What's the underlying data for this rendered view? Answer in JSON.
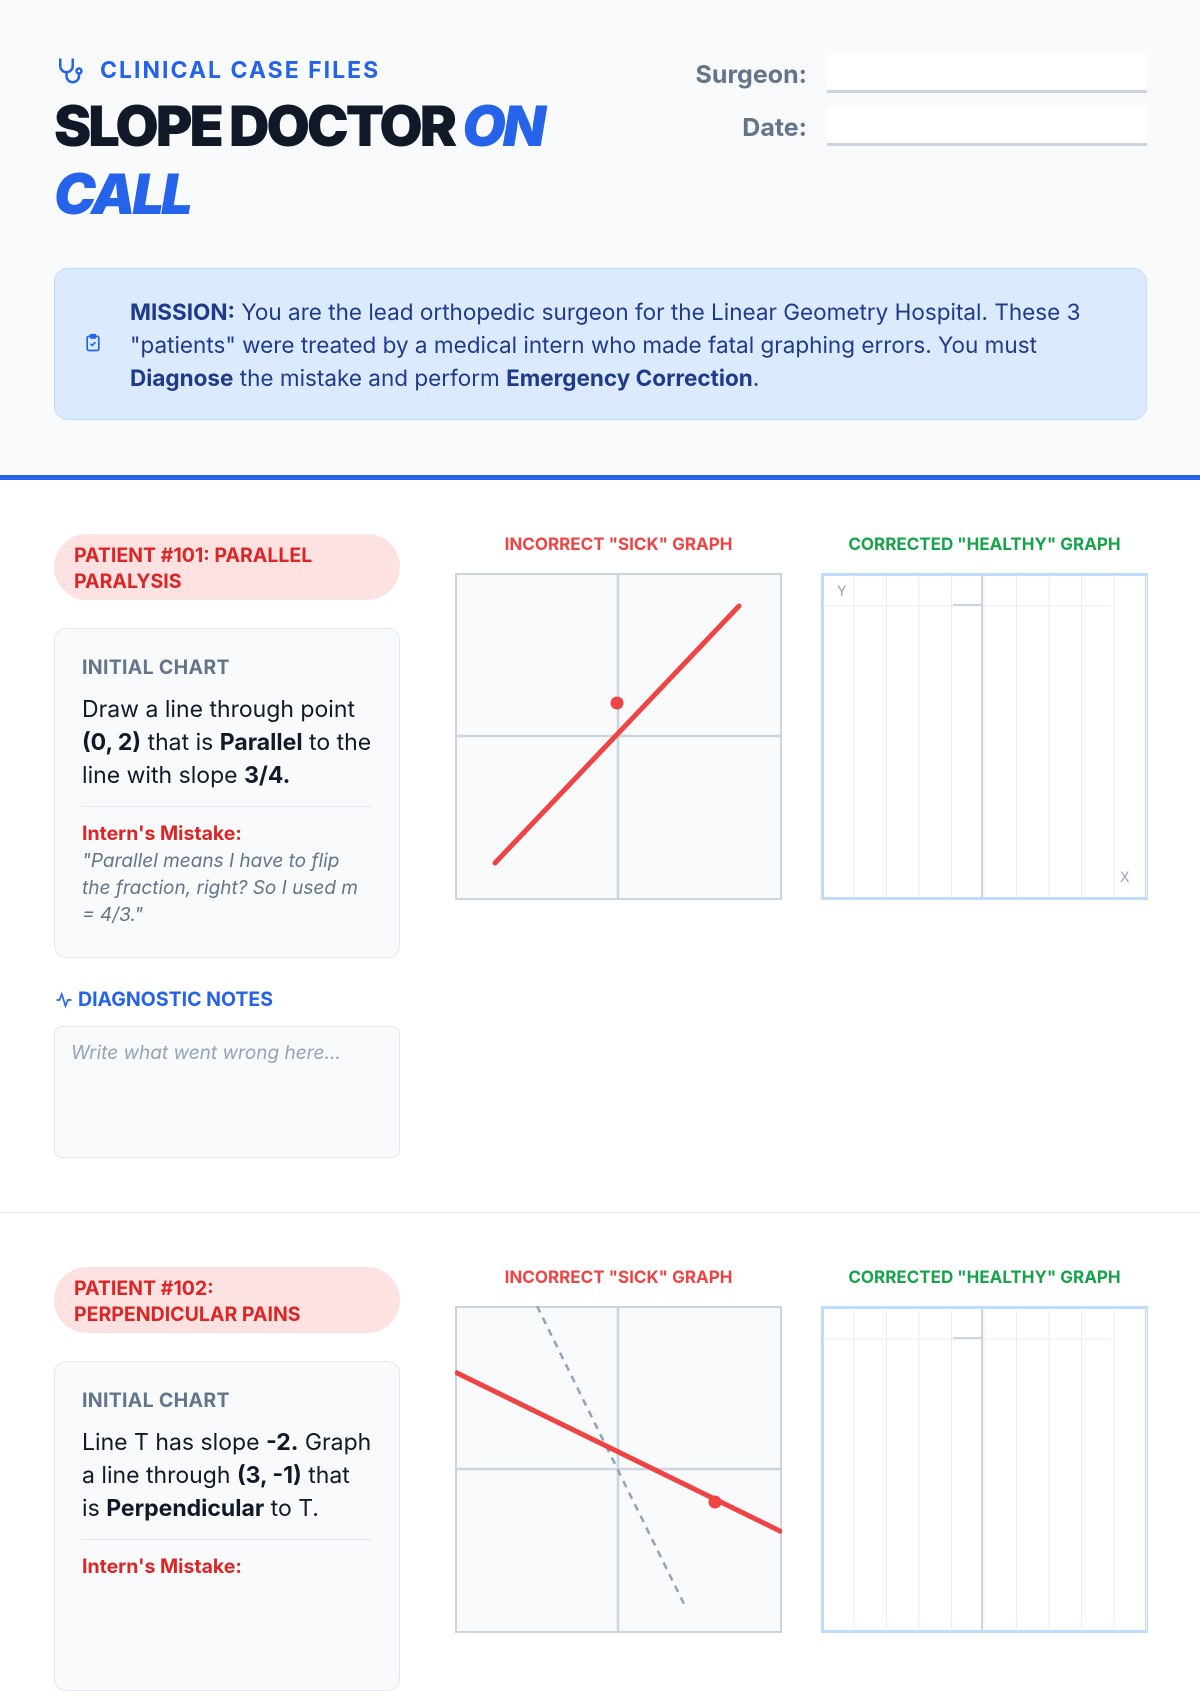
{
  "header": {
    "kicker": "CLINICAL CASE FILES",
    "title": "SLOPE DOCTOR",
    "title_accent": "ON CALL",
    "fields": [
      {
        "label": "Surgeon:"
      },
      {
        "label": "Date:"
      }
    ]
  },
  "mission": {
    "segments": [
      {
        "text": "MISSION:",
        "bold": true
      },
      {
        "text": " You are the lead orthopedic surgeon for the Linear Geometry Hospital. These 3 \"patients\" were treated by a medical intern who made fatal graphing errors. You must "
      },
      {
        "text": "Diagnose",
        "bold": true
      },
      {
        "text": " the mistake and perform "
      },
      {
        "text": "Emergency Correction",
        "bold": true
      },
      {
        "text": "."
      }
    ]
  },
  "patients": [
    {
      "title": "PATIENT #101: PARALLEL PARALYSIS",
      "chart_label": "INITIAL CHART",
      "prompt": [
        {
          "text": "Draw a line through point "
        },
        {
          "text": "(0, 2)",
          "bold": true
        },
        {
          "text": " that is "
        },
        {
          "text": "Parallel",
          "bold": true
        },
        {
          "text": " to the line with slope "
        },
        {
          "text": "3/4.",
          "bold": true
        }
      ],
      "mistake_label": "Intern's Mistake:",
      "mistake": "\"Parallel means I have to flip the fraction, right? So I used m = 4/3.\"",
      "notes_heading": "DIAGNOSTIC NOTES",
      "notes_placeholder": "Write what went wrong here...",
      "sick_title": "INCORRECT \"SICK\" GRAPH",
      "healthy_title": "CORRECTED \"HEALTHY\" GRAPH",
      "y_label": "Y",
      "x_label": "X"
    },
    {
      "title": "PATIENT #102: PERPENDICULAR PAINS",
      "chart_label": "INITIAL CHART",
      "prompt": [
        {
          "text": "Line T has slope "
        },
        {
          "text": "-2.",
          "bold": true
        },
        {
          "text": " Graph a line through "
        },
        {
          "text": "(3, -1)",
          "bold": true
        },
        {
          "text": " that is "
        },
        {
          "text": "Perpendicular",
          "bold": true
        },
        {
          "text": " to T."
        }
      ],
      "mistake_label": "Intern's Mistake:",
      "sick_title": "INCORRECT \"SICK\" GRAPH",
      "healthy_title": "CORRECTED \"HEALTHY\" GRAPH"
    }
  ]
}
